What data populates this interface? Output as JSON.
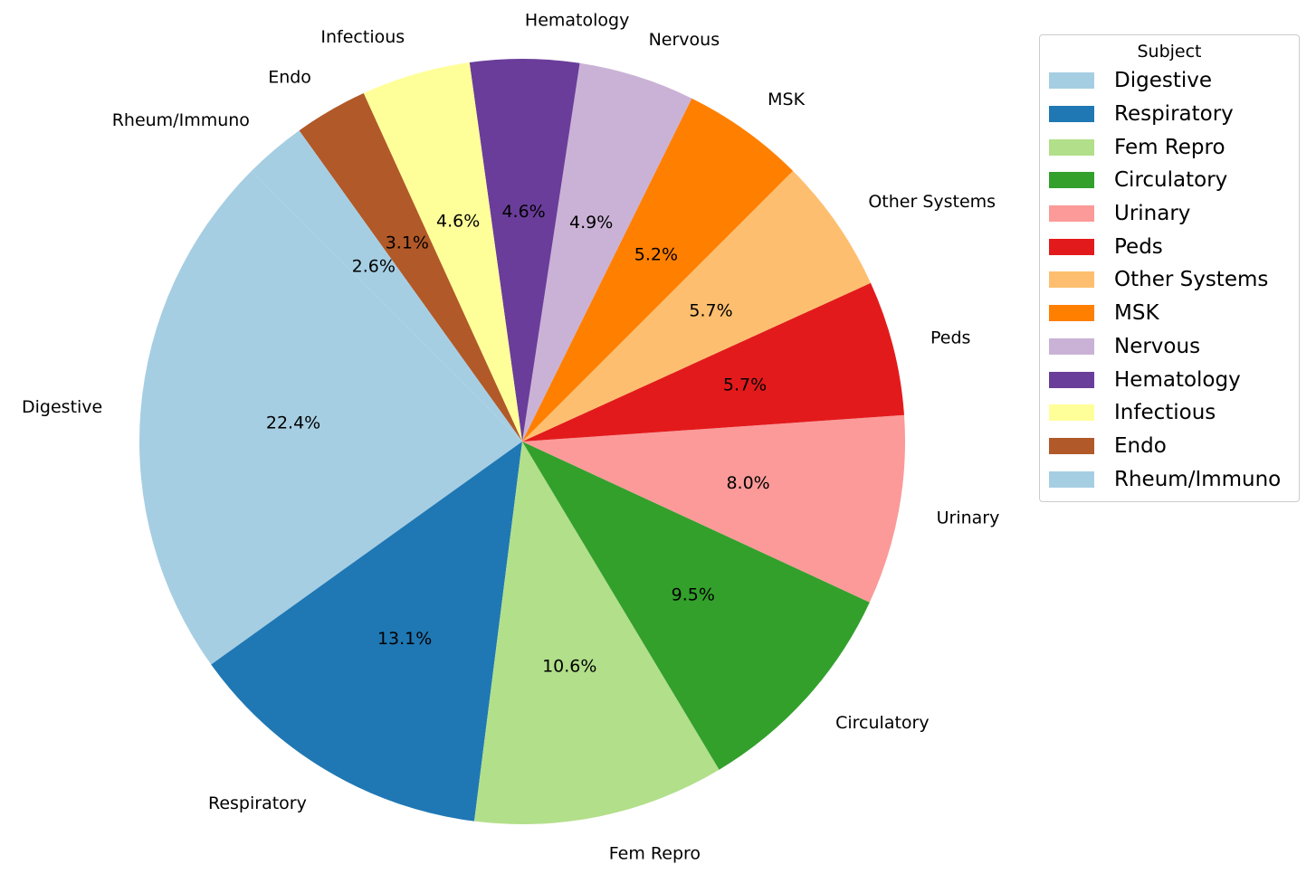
{
  "chart_data": {
    "type": "pie",
    "title": "",
    "categories": [
      "Digestive",
      "Respiratory",
      "Fem Repro",
      "Circulatory",
      "Urinary",
      "Peds",
      "Other Systems",
      "MSK",
      "Nervous",
      "Hematology",
      "Infectious",
      "Endo",
      "Rheum/Immuno"
    ],
    "values": [
      22.4,
      13.1,
      10.6,
      9.5,
      8.0,
      5.7,
      5.7,
      5.2,
      4.9,
      4.6,
      4.6,
      3.1,
      2.6
    ],
    "value_labels": [
      "22.4%",
      "13.1%",
      "10.6%",
      "9.5%",
      "8.0%",
      "5.7%",
      "5.7%",
      "5.2%",
      "4.9%",
      "4.6%",
      "4.6%",
      "3.1%",
      "2.6%"
    ],
    "colors": [
      "#a6cee3",
      "#1f78b4",
      "#b2df8a",
      "#33a02c",
      "#fb9a99",
      "#e31a1c",
      "#fdbf6f",
      "#ff7f00",
      "#cab2d6",
      "#6a3d9a",
      "#ffff99",
      "#b15928",
      "#a6cee3"
    ],
    "start_angle_deg": 135,
    "direction": "counterclockwise",
    "legend": {
      "title": "Subject",
      "placement": "right"
    }
  }
}
